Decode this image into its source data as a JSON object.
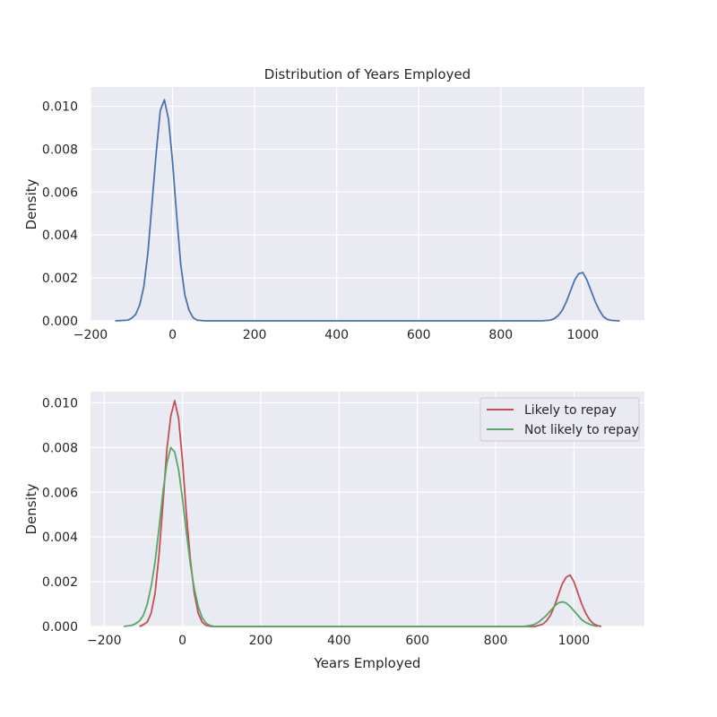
{
  "chart_data": [
    {
      "type": "line",
      "title": "Distribution of Years Employed",
      "xlabel": "",
      "ylabel": "Density",
      "xlim": [
        -200,
        1150
      ],
      "ylim": [
        0,
        0.0109
      ],
      "xticks": [
        -200,
        0,
        200,
        400,
        600,
        800,
        1000
      ],
      "xtick_labels": [
        "−200",
        "0",
        "200",
        "400",
        "600",
        "800",
        "1000"
      ],
      "yticks": [
        0,
        0.002,
        0.004,
        0.006,
        0.008,
        0.01
      ],
      "ytick_labels": [
        "0.000",
        "0.002",
        "0.004",
        "0.006",
        "0.008",
        "0.010"
      ],
      "grid": true,
      "series": [
        {
          "color": "#4c72b0",
          "points": [
            [
              -140,
              0.0
            ],
            [
              -110,
              3e-05
            ],
            [
              -100,
              0.00012
            ],
            [
              -90,
              0.0003
            ],
            [
              -80,
              0.00075
            ],
            [
              -70,
              0.0016
            ],
            [
              -60,
              0.0032
            ],
            [
              -50,
              0.0055
            ],
            [
              -40,
              0.0078
            ],
            [
              -30,
              0.0098
            ],
            [
              -20,
              0.0103
            ],
            [
              -10,
              0.0094
            ],
            [
              0,
              0.0074
            ],
            [
              10,
              0.0049
            ],
            [
              20,
              0.0026
            ],
            [
              30,
              0.0012
            ],
            [
              40,
              0.0005
            ],
            [
              50,
              0.00015
            ],
            [
              60,
              3e-05
            ],
            [
              80,
              0.0
            ],
            [
              900,
              0.0
            ],
            [
              920,
              3e-05
            ],
            [
              930,
              0.0001
            ],
            [
              940,
              0.00025
            ],
            [
              950,
              0.0005
            ],
            [
              960,
              0.0009
            ],
            [
              970,
              0.0014
            ],
            [
              980,
              0.0019
            ],
            [
              990,
              0.0022
            ],
            [
              1000,
              0.00225
            ],
            [
              1010,
              0.0019
            ],
            [
              1020,
              0.0014
            ],
            [
              1030,
              0.0009
            ],
            [
              1040,
              0.0005
            ],
            [
              1050,
              0.0002
            ],
            [
              1060,
              7e-05
            ],
            [
              1070,
              2e-05
            ],
            [
              1090,
              0.0
            ]
          ]
        }
      ]
    },
    {
      "type": "line",
      "title": "",
      "xlabel": "Years Employed",
      "ylabel": "Density",
      "xlim": [
        -235,
        1180
      ],
      "ylim": [
        0,
        0.0105
      ],
      "xticks": [
        -200,
        0,
        200,
        400,
        600,
        800,
        1000
      ],
      "xtick_labels": [
        "−200",
        "0",
        "200",
        "400",
        "600",
        "800",
        "1000"
      ],
      "yticks": [
        0,
        0.002,
        0.004,
        0.006,
        0.008,
        0.01
      ],
      "ytick_labels": [
        "0.000",
        "0.002",
        "0.004",
        "0.006",
        "0.008",
        "0.010"
      ],
      "grid": true,
      "legend_position": "top-right",
      "series": [
        {
          "name": "Likely to repay",
          "color": "#c44e52",
          "points": [
            [
              -110,
              0.0
            ],
            [
              -100,
              8e-05
            ],
            [
              -90,
              0.0002
            ],
            [
              -80,
              0.0006
            ],
            [
              -70,
              0.0015
            ],
            [
              -60,
              0.0032
            ],
            [
              -50,
              0.0055
            ],
            [
              -40,
              0.0079
            ],
            [
              -30,
              0.0094
            ],
            [
              -20,
              0.0101
            ],
            [
              -10,
              0.0093
            ],
            [
              0,
              0.0074
            ],
            [
              10,
              0.005
            ],
            [
              20,
              0.003
            ],
            [
              30,
              0.0015
            ],
            [
              40,
              0.0006
            ],
            [
              50,
              0.0002
            ],
            [
              60,
              5e-05
            ],
            [
              75,
              0.0
            ],
            [
              900,
              0.0
            ],
            [
              920,
              0.0001
            ],
            [
              930,
              0.00025
            ],
            [
              940,
              0.0005
            ],
            [
              950,
              0.0009
            ],
            [
              960,
              0.0014
            ],
            [
              970,
              0.0019
            ],
            [
              980,
              0.0022
            ],
            [
              990,
              0.0023
            ],
            [
              1000,
              0.002
            ],
            [
              1010,
              0.0015
            ],
            [
              1020,
              0.001
            ],
            [
              1030,
              0.0006
            ],
            [
              1040,
              0.0003
            ],
            [
              1050,
              0.00012
            ],
            [
              1060,
              4e-05
            ],
            [
              1070,
              0.0
            ]
          ]
        },
        {
          "name": "Not likely to repay",
          "color": "#55a868",
          "points": [
            [
              -150,
              0.0
            ],
            [
              -130,
              5e-05
            ],
            [
              -120,
              0.00012
            ],
            [
              -110,
              0.00025
            ],
            [
              -100,
              0.0005
            ],
            [
              -90,
              0.001
            ],
            [
              -80,
              0.0018
            ],
            [
              -70,
              0.0029
            ],
            [
              -60,
              0.0044
            ],
            [
              -50,
              0.006
            ],
            [
              -40,
              0.0073
            ],
            [
              -30,
              0.008
            ],
            [
              -20,
              0.0078
            ],
            [
              -10,
              0.007
            ],
            [
              0,
              0.0057
            ],
            [
              10,
              0.0042
            ],
            [
              20,
              0.0028
            ],
            [
              30,
              0.0017
            ],
            [
              40,
              0.0009
            ],
            [
              50,
              0.0004
            ],
            [
              60,
              0.00015
            ],
            [
              70,
              5e-05
            ],
            [
              80,
              0.0
            ],
            [
              870,
              0.0
            ],
            [
              890,
              5e-05
            ],
            [
              900,
              0.0001
            ],
            [
              910,
              0.0002
            ],
            [
              920,
              0.00035
            ],
            [
              930,
              0.0005
            ],
            [
              940,
              0.0007
            ],
            [
              950,
              0.0009
            ],
            [
              960,
              0.00105
            ],
            [
              970,
              0.0011
            ],
            [
              980,
              0.00105
            ],
            [
              990,
              0.0009
            ],
            [
              1000,
              0.0007
            ],
            [
              1010,
              0.0005
            ],
            [
              1020,
              0.0003
            ],
            [
              1030,
              0.00018
            ],
            [
              1040,
              0.0001
            ],
            [
              1050,
              4e-05
            ],
            [
              1060,
              0.0
            ]
          ]
        }
      ]
    }
  ]
}
